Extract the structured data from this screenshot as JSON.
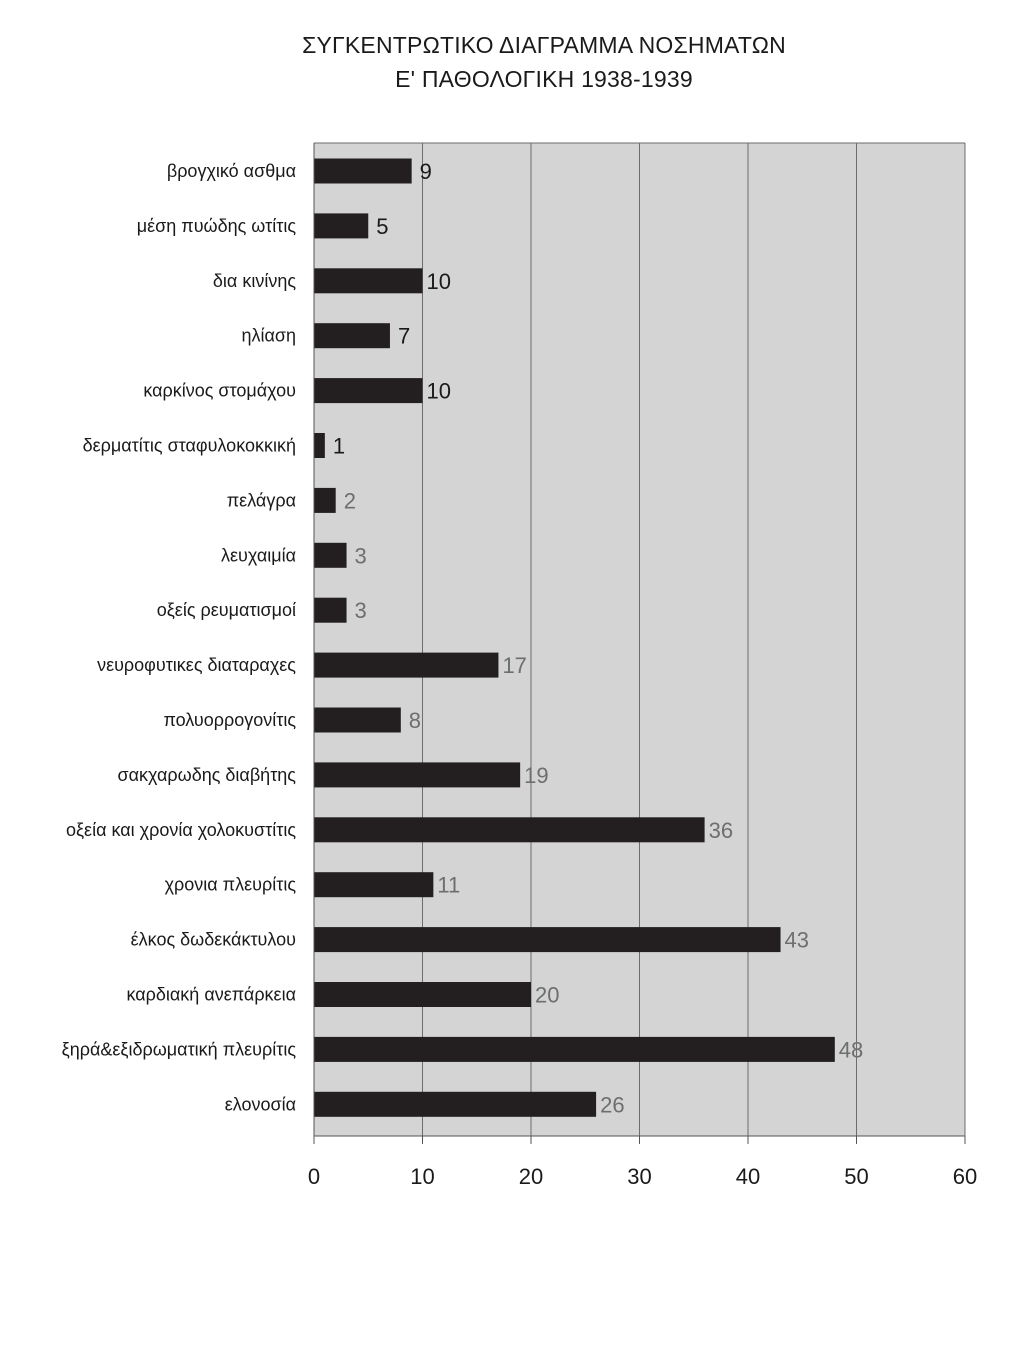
{
  "chart_data": {
    "type": "bar",
    "orientation": "horizontal",
    "title": "ΣΥΓΚΕΝΤΡΩΤΙΚΟ ΔΙΑΓΡΑΜΜΑ ΝΟΣΗΜΑΤΩΝ",
    "subtitle": "Ε' ΠΑΘΟΛΟΓΙΚΗ 1938-1939",
    "categories": [
      "βρογχικό ασθμα",
      "μέση πυώδης ωτίτις",
      "δια κινίνης",
      "ηλίαση",
      "καρκίνος στομάχου",
      "δερματίτις σταφυλοκοκκική",
      "πελάγρα",
      "λευχαιμία",
      "οξείς ρευματισμοί",
      "νευροφυτικες διαταραχες",
      "πολυορρογονίτις",
      "σακχαρωδης διαβήτης",
      "οξεία και χρονία χολοκυστίτις",
      "χρονια πλευρίτις",
      "έλκος δωδεκάκτυλου",
      "καρδιακή ανεπάρκεια",
      "ξηρά&εξιδρωματική πλευρίτις",
      "ελονοσία"
    ],
    "values": [
      9,
      5,
      10,
      7,
      10,
      1,
      2,
      3,
      3,
      17,
      8,
      19,
      36,
      11,
      43,
      20,
      48,
      26
    ],
    "value_labels": [
      "9",
      "5",
      "10",
      "7",
      "10",
      "1",
      "2",
      "3",
      "3",
      "17",
      "8",
      "19",
      "36",
      "11",
      "43",
      "20",
      "48",
      "26"
    ],
    "xlim": [
      0,
      60
    ],
    "x_ticks": [
      0,
      10,
      20,
      30,
      40,
      50,
      60
    ],
    "x_tick_labels": [
      "0",
      "10",
      "20",
      "30",
      "40",
      "50",
      "60"
    ],
    "grid": true,
    "legend": "none",
    "colors": {
      "plot_background": "#d4d4d4",
      "bar": "#231f20",
      "gridline": "#6d6d6d",
      "label_dark": "#1a1a1a",
      "label_gray": "#6e6e6e"
    }
  }
}
